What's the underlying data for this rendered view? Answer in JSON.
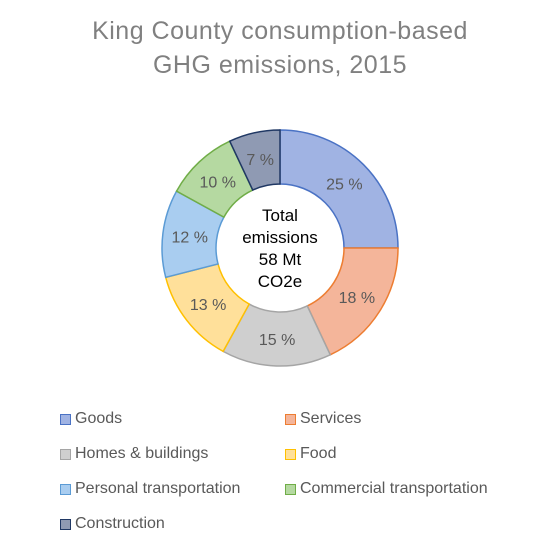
{
  "chart_data": {
    "type": "pie",
    "title_lines": [
      "King County consumption-based",
      "GHG emissions, 2015"
    ],
    "center_label_lines": [
      "Total",
      "emissions",
      "58 Mt",
      "CO2e"
    ],
    "slices": [
      {
        "name": "Goods",
        "value": 25,
        "label": "25 %",
        "fill": "#a0b3e3",
        "stroke": "#4a72c4"
      },
      {
        "name": "Services",
        "value": 18,
        "label": "18 %",
        "fill": "#f4b59a",
        "stroke": "#ed7d31"
      },
      {
        "name": "Homes & buildings",
        "value": 15,
        "label": "15 %",
        "fill": "#cfcfcf",
        "stroke": "#a5a5a5"
      },
      {
        "name": "Food",
        "value": 13,
        "label": "13 %",
        "fill": "#ffe09a",
        "stroke": "#ffc000"
      },
      {
        "name": "Personal transportation",
        "value": 12,
        "label": "12 %",
        "fill": "#a9cdf0",
        "stroke": "#5b9bd5"
      },
      {
        "name": "Commercial transportation",
        "value": 10,
        "label": "10 %",
        "fill": "#b5d9a1",
        "stroke": "#70ad47"
      },
      {
        "name": "Construction",
        "value": 7,
        "label": "7 %",
        "fill": "#8f9ab3",
        "stroke": "#203864"
      }
    ],
    "legend_position": "bottom"
  }
}
